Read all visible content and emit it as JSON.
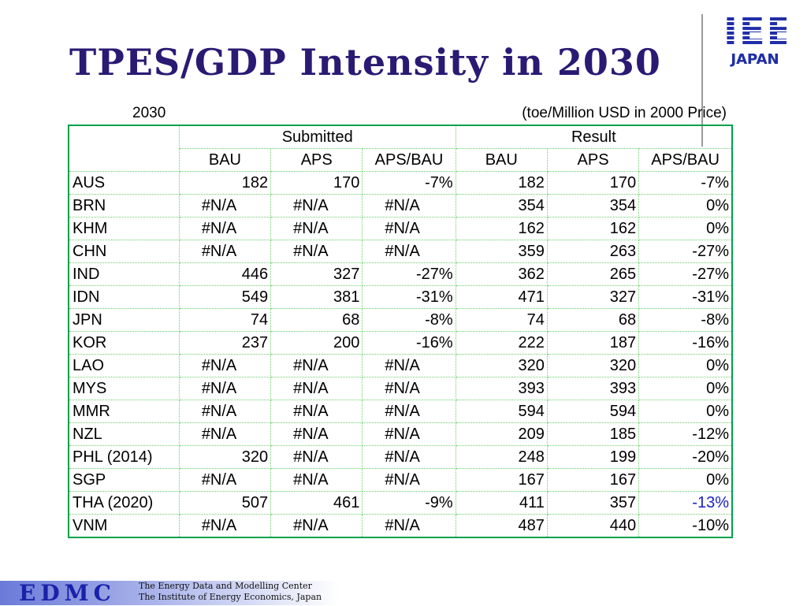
{
  "title": "TPES/GDP Intensity in 2030",
  "logo": {
    "top": "IEE",
    "bottom": "JAPAN"
  },
  "table": {
    "year_label": "2030",
    "unit_label": "(toe/Million USD in 2000 Price)",
    "group_headers": [
      "Submitted",
      "Result"
    ],
    "sub_headers": [
      "BAU",
      "APS",
      "APS/BAU",
      "BAU",
      "APS",
      "APS/BAU"
    ],
    "rows": [
      {
        "country": "AUS",
        "cells": [
          "182",
          "170",
          "-7%",
          "182",
          "170",
          "-7%"
        ]
      },
      {
        "country": "BRN",
        "cells": [
          "#N/A",
          "#N/A",
          "#N/A",
          "354",
          "354",
          "0%"
        ]
      },
      {
        "country": "KHM",
        "cells": [
          "#N/A",
          "#N/A",
          "#N/A",
          "162",
          "162",
          "0%"
        ]
      },
      {
        "country": "CHN",
        "cells": [
          "#N/A",
          "#N/A",
          "#N/A",
          "359",
          "263",
          "-27%"
        ]
      },
      {
        "country": "IND",
        "cells": [
          "446",
          "327",
          "-27%",
          "362",
          "265",
          "-27%"
        ]
      },
      {
        "country": "IDN",
        "cells": [
          "549",
          "381",
          "-31%",
          "471",
          "327",
          "-31%"
        ]
      },
      {
        "country": "JPN",
        "cells": [
          "74",
          "68",
          "-8%",
          "74",
          "68",
          "-8%"
        ]
      },
      {
        "country": "KOR",
        "cells": [
          "237",
          "200",
          "-16%",
          "222",
          "187",
          "-16%"
        ]
      },
      {
        "country": "LAO",
        "cells": [
          "#N/A",
          "#N/A",
          "#N/A",
          "320",
          "320",
          "0%"
        ]
      },
      {
        "country": "MYS",
        "cells": [
          "#N/A",
          "#N/A",
          "#N/A",
          "393",
          "393",
          "0%"
        ]
      },
      {
        "country": "MMR",
        "cells": [
          "#N/A",
          "#N/A",
          "#N/A",
          "594",
          "594",
          "0%"
        ]
      },
      {
        "country": "NZL",
        "cells": [
          "#N/A",
          "#N/A",
          "#N/A",
          "209",
          "185",
          "-12%"
        ]
      },
      {
        "country": "PHL (2014)",
        "cells": [
          "320",
          "#N/A",
          "#N/A",
          "248",
          "199",
          "-20%"
        ]
      },
      {
        "country": "SGP",
        "cells": [
          "#N/A",
          "#N/A",
          "#N/A",
          "167",
          "167",
          "0%"
        ]
      },
      {
        "country": "THA (2020)",
        "cells": [
          "507",
          "461",
          "-9%",
          "411",
          "357",
          "-13%"
        ]
      },
      {
        "country": "VNM",
        "cells": [
          "#N/A",
          "#N/A",
          "#N/A",
          "487",
          "440",
          "-10%"
        ]
      }
    ],
    "highlight_color": "#1a22c8"
  },
  "footer": {
    "logo_text": "EDMC",
    "line1": "The Energy Data and Modelling Center",
    "line2": "The Institute of Energy Economics, Japan"
  }
}
